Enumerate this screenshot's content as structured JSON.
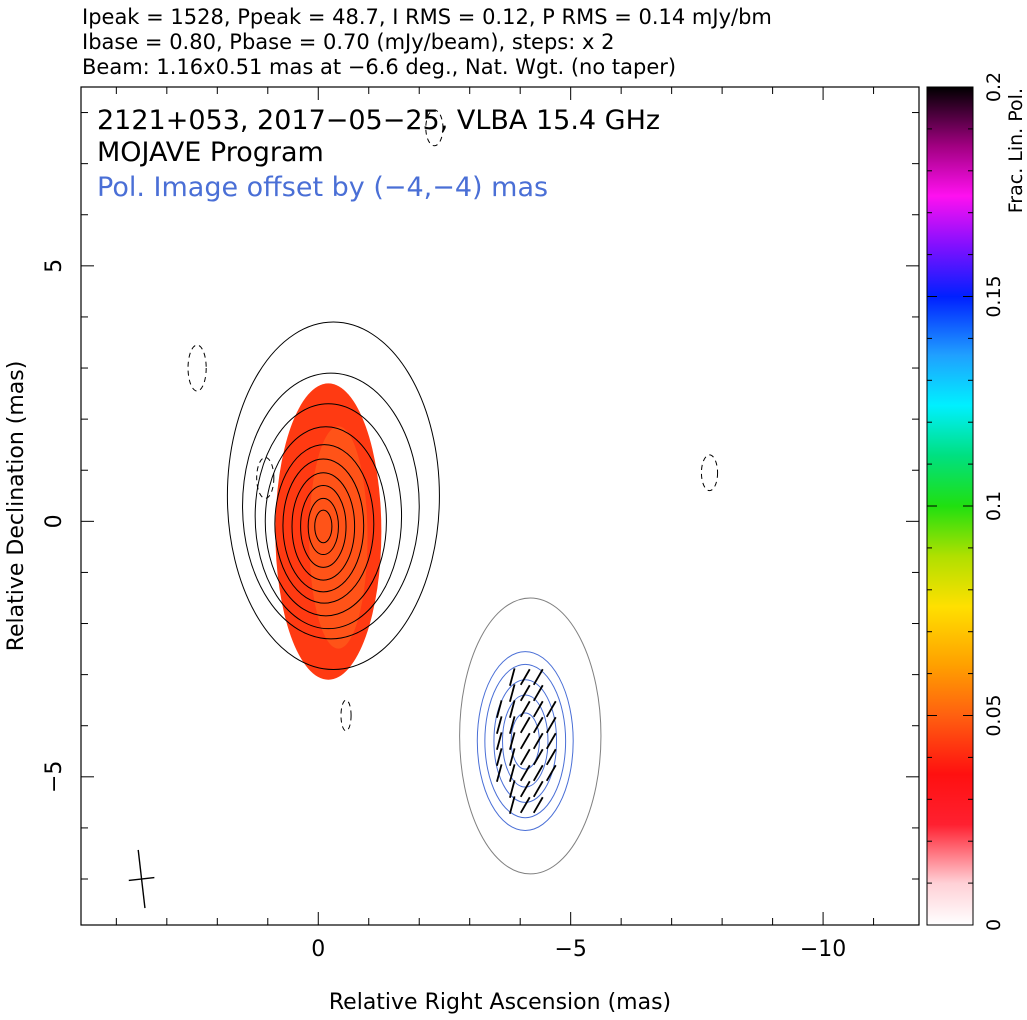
{
  "header": {
    "line1": "Ipeak = 1528, Ppeak = 48.7, I RMS = 0.12, P RMS = 0.14 mJy/bm",
    "line2": "Ibase = 0.80, Pbase = 0.70 (mJy/beam), steps: x 2",
    "line3": "Beam: 1.16x0.51 mas at −6.6 deg., Nat. Wgt. (no taper)"
  },
  "annotations": {
    "source": "2121+053, 2017−05−25, VLBA 15.4 GHz",
    "program": "MOJAVE Program",
    "offset_note": "Pol. Image offset by (−4,−4) mas"
  },
  "colors": {
    "total_intensity_contours": "#000000",
    "pol_contours": "#4a6fd6",
    "outer_contour": "#808080",
    "annotation_blue": "#4a6fd6"
  },
  "chart_data": {
    "type": "contour",
    "xlabel": "Relative Right Ascension (mas)",
    "ylabel": "Relative Declination (mas)",
    "xlim": [
      4.7,
      -11.9
    ],
    "ylim": [
      -7.9,
      8.5
    ],
    "x_ticks": [
      {
        "value": 0,
        "label": "0"
      },
      {
        "value": -5,
        "label": "−5"
      },
      {
        "value": -10,
        "label": "−10"
      }
    ],
    "y_ticks": [
      {
        "value": 5,
        "label": "5"
      },
      {
        "value": 0,
        "label": "0"
      },
      {
        "value": -5,
        "label": "−5"
      }
    ],
    "colorbar": {
      "label": "Frac. Lin. Pol.",
      "range": [
        0,
        0.2
      ],
      "ticks": [
        {
          "value": 0,
          "label": "0"
        },
        {
          "value": 0.05,
          "label": "0.05"
        },
        {
          "value": 0.1,
          "label": "0.1"
        },
        {
          "value": 0.15,
          "label": "0.15"
        },
        {
          "value": 0.2,
          "label": "0.2"
        }
      ]
    },
    "beam": {
      "major_mas": 1.16,
      "minor_mas": 0.51,
      "pa_deg": -6.6,
      "center": [
        3.5,
        -7.0
      ]
    },
    "intensity_peak_center": [
      -0.1,
      -0.1
    ],
    "intensity_contours_mas": [
      {
        "cx": -0.3,
        "cy": 0.5,
        "rx": 2.1,
        "ry": 3.4
      },
      {
        "cx": -0.25,
        "cy": 0.3,
        "rx": 1.75,
        "ry": 2.6
      },
      {
        "cx": -0.2,
        "cy": 0.1,
        "rx": 1.45,
        "ry": 2.2
      },
      {
        "cx": -0.15,
        "cy": 0.0,
        "rx": 1.2,
        "ry": 1.85
      },
      {
        "cx": -0.12,
        "cy": -0.05,
        "rx": 0.98,
        "ry": 1.55
      },
      {
        "cx": -0.1,
        "cy": -0.08,
        "rx": 0.8,
        "ry": 1.3
      },
      {
        "cx": -0.1,
        "cy": -0.1,
        "rx": 0.62,
        "ry": 1.05
      },
      {
        "cx": -0.1,
        "cy": -0.1,
        "rx": 0.45,
        "ry": 0.8
      },
      {
        "cx": -0.1,
        "cy": -0.1,
        "rx": 0.3,
        "ry": 0.55
      },
      {
        "cx": -0.1,
        "cy": -0.1,
        "rx": 0.17,
        "ry": 0.32
      }
    ],
    "fractional_pol_patch": {
      "cx": -0.2,
      "cy": -0.2,
      "rx": 1.05,
      "ry": 2.9,
      "value": 0.03
    },
    "pol_contours_mas": [
      {
        "cx": -4.2,
        "cy": -4.2,
        "rx": 1.4,
        "ry": 2.7,
        "gray": true
      },
      {
        "cx": -4.1,
        "cy": -4.3,
        "rx": 0.95,
        "ry": 1.75
      },
      {
        "cx": -4.1,
        "cy": -4.3,
        "rx": 0.8,
        "ry": 1.5
      },
      {
        "cx": -4.1,
        "cy": -4.3,
        "rx": 0.62,
        "ry": 1.2
      },
      {
        "cx": -4.1,
        "cy": -4.3,
        "rx": 0.45,
        "ry": 0.9
      },
      {
        "cx": -4.1,
        "cy": -4.3,
        "rx": 0.28,
        "ry": 0.55
      }
    ],
    "negative_contours_mas": [
      {
        "cx": 2.4,
        "cy": 3.0,
        "rx": 0.18,
        "ry": 0.45
      },
      {
        "cx": 1.05,
        "cy": 0.85,
        "rx": 0.17,
        "ry": 0.4
      },
      {
        "cx": -2.3,
        "cy": 7.7,
        "rx": 0.17,
        "ry": 0.35
      },
      {
        "cx": -0.55,
        "cy": -3.8,
        "rx": 0.1,
        "ry": 0.3
      },
      {
        "cx": -7.75,
        "cy": 0.95,
        "rx": 0.16,
        "ry": 0.35
      }
    ]
  }
}
